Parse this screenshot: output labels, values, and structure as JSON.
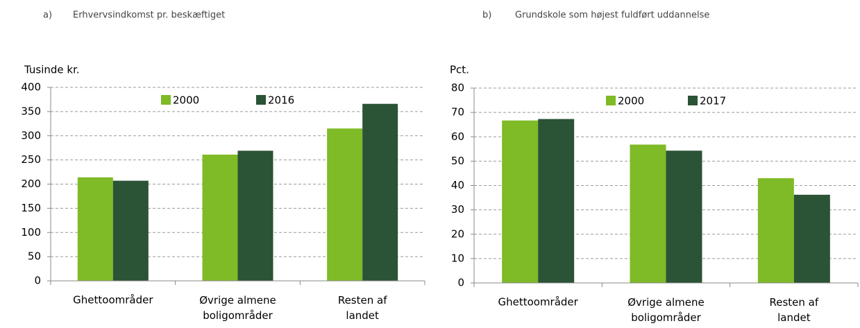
{
  "chart_data": [
    {
      "type": "bar",
      "label": "a)",
      "title": "Erhvervsindkomst pr. beskæftiget",
      "y_label": "Tusinde kr.",
      "categories": [
        "Ghettoområder",
        "Øvrige almene boligområder",
        "Resten af landet"
      ],
      "series": [
        {
          "name": "2000",
          "color": "#7fba27",
          "values": [
            214,
            261,
            315
          ]
        },
        {
          "name": "2016",
          "color": "#2b5335",
          "values": [
            207,
            269,
            366
          ]
        }
      ],
      "ylim": [
        0,
        400
      ],
      "yticks": [
        0,
        50,
        100,
        150,
        200,
        250,
        300,
        350,
        400
      ],
      "grid": true
    },
    {
      "type": "bar",
      "label": "b)",
      "title": "Grundskole som højest fuldført uddannelse",
      "y_label": "Pct.",
      "categories": [
        "Ghettoområder",
        "Øvrige almene boligområder",
        "Resten af landet"
      ],
      "series": [
        {
          "name": "2000",
          "color": "#7fba27",
          "values": [
            66.7,
            56.8,
            43
          ]
        },
        {
          "name": "2017",
          "color": "#2b5335",
          "values": [
            67.3,
            54.3,
            36.2
          ]
        }
      ],
      "ylim": [
        0,
        80
      ],
      "yticks": [
        0,
        10,
        20,
        30,
        40,
        50,
        60,
        70,
        80
      ],
      "grid": true
    }
  ]
}
